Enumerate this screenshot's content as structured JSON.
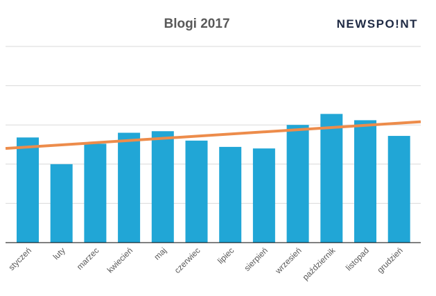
{
  "brand": {
    "logo_text": "NEWSPO!NT"
  },
  "chart_data": {
    "type": "bar",
    "title": "Blogi 2017",
    "categories": [
      "styczeń",
      "luty",
      "marzec",
      "kwiecień",
      "maj",
      "czerwiec",
      "lipiec",
      "sierpień",
      "wrzesień",
      "październik",
      "listopad",
      "grudzień"
    ],
    "values": [
      67,
      50,
      63,
      70,
      71,
      65,
      61,
      60,
      75,
      82,
      78,
      68
    ],
    "trendline": {
      "type": "linear",
      "start": 60,
      "end": 77,
      "color": "#ed8c4b"
    },
    "bar_color": "#21a6d6",
    "ylim": [
      0,
      125
    ],
    "y_gridlines": [
      25,
      50,
      75,
      100,
      125
    ],
    "y_tick_labels_visible": false,
    "grid": true,
    "xlabel": "",
    "ylabel": "",
    "legend": "none"
  }
}
